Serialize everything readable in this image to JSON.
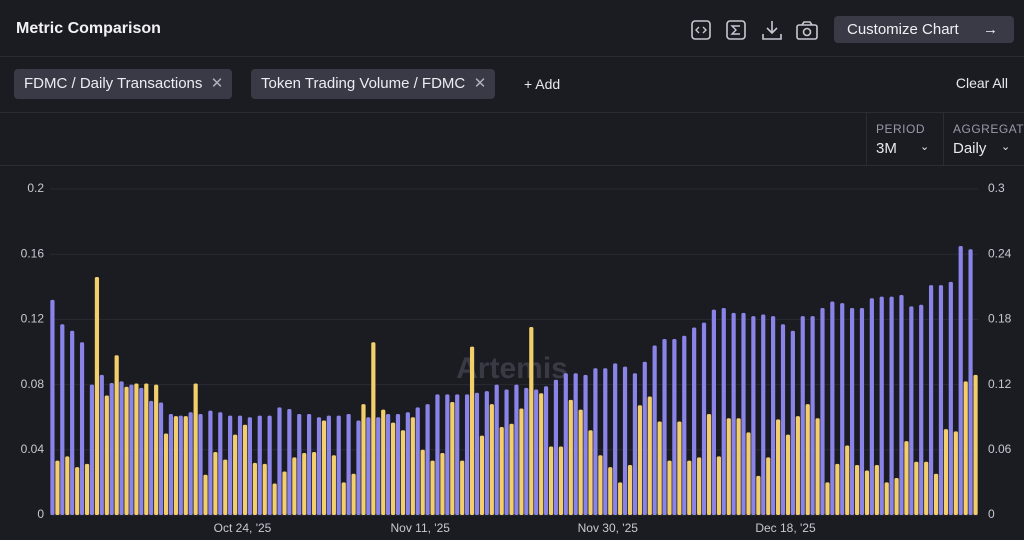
{
  "header": {
    "title": "Metric Comparison",
    "button": "Customize Chart"
  },
  "toolbar": {
    "add": "+ Add",
    "clear": "Clear All"
  },
  "controls": [
    {
      "label": "PERIOD",
      "value": "3M"
    },
    {
      "label": "AGGREGATE",
      "value": "Daily"
    }
  ],
  "chart_data": {
    "type": "bar",
    "watermark": "Artemis",
    "categories": [
      null,
      null,
      null,
      null,
      null,
      null,
      null,
      null,
      null,
      null,
      null,
      null,
      null,
      null,
      null,
      null,
      null,
      null,
      null,
      "Oct 24, '25",
      null,
      null,
      null,
      null,
      null,
      null,
      null,
      null,
      null,
      null,
      null,
      null,
      null,
      null,
      null,
      null,
      null,
      "Nov 11, '25",
      null,
      null,
      null,
      null,
      null,
      null,
      null,
      null,
      null,
      null,
      null,
      null,
      null,
      null,
      null,
      null,
      null,
      null,
      "Nov 30, '25",
      null,
      null,
      null,
      null,
      null,
      null,
      null,
      null,
      null,
      null,
      null,
      null,
      null,
      null,
      null,
      null,
      null,
      "Dec 18, '25",
      null,
      null,
      null,
      null,
      null,
      null,
      null,
      null,
      null,
      null,
      null,
      null,
      null,
      null,
      null,
      null,
      null,
      null,
      null
    ],
    "series": [
      {
        "name": "FDMC / Daily Transactions",
        "color": "#8b84e8",
        "axis": "y",
        "values": [
          0.132,
          0.117,
          0.113,
          0.106,
          0.08,
          0.086,
          0.081,
          0.082,
          0.08,
          0.078,
          0.07,
          0.069,
          0.062,
          0.061,
          0.063,
          0.062,
          0.064,
          0.063,
          0.061,
          0.061,
          0.06,
          0.061,
          0.061,
          0.066,
          0.065,
          0.062,
          0.062,
          0.06,
          0.061,
          0.061,
          0.062,
          0.058,
          0.06,
          0.06,
          0.062,
          0.062,
          0.063,
          0.066,
          0.068,
          0.074,
          0.074,
          0.074,
          0.074,
          0.075,
          0.076,
          0.08,
          0.077,
          0.08,
          0.078,
          0.077,
          0.079,
          0.083,
          0.087,
          0.087,
          0.086,
          0.09,
          0.09,
          0.093,
          0.091,
          0.087,
          0.094,
          0.104,
          0.108,
          0.108,
          0.11,
          0.115,
          0.118,
          0.126,
          0.127,
          0.124,
          0.124,
          0.122,
          0.123,
          0.122,
          0.117,
          0.113,
          0.122,
          0.122,
          0.127,
          0.131,
          0.13,
          0.127,
          0.127,
          0.133,
          0.134,
          0.134,
          0.135,
          0.128,
          0.129,
          0.141,
          0.141,
          0.143,
          0.165,
          0.163
        ]
      },
      {
        "name": "Token Trading Volume / FDMC",
        "color": "#f2cf6b",
        "axis": "y2",
        "values": [
          0.05,
          0.054,
          0.044,
          0.047,
          0.219,
          0.11,
          0.147,
          0.118,
          0.121,
          0.121,
          0.12,
          0.075,
          0.091,
          0.091,
          0.121,
          0.037,
          0.058,
          0.051,
          0.074,
          0.083,
          0.048,
          0.047,
          0.029,
          0.04,
          0.053,
          0.057,
          0.058,
          0.087,
          0.055,
          0.03,
          0.038,
          0.102,
          0.159,
          0.097,
          0.085,
          0.078,
          0.09,
          0.06,
          0.05,
          0.057,
          0.104,
          0.05,
          0.155,
          0.073,
          0.102,
          0.081,
          0.084,
          0.098,
          0.173,
          0.112,
          0.063,
          0.063,
          0.106,
          0.097,
          0.078,
          0.055,
          0.044,
          0.03,
          0.046,
          0.101,
          0.109,
          0.086,
          0.05,
          0.086,
          0.05,
          0.053,
          0.093,
          0.054,
          0.089,
          0.089,
          0.076,
          0.036,
          0.053,
          0.088,
          0.074,
          0.091,
          0.102,
          0.089,
          0.03,
          0.047,
          0.064,
          0.046,
          0.041,
          0.046,
          0.03,
          0.034,
          0.068,
          0.049,
          0.049,
          0.038,
          0.079,
          0.077,
          0.123,
          0.129
        ]
      }
    ],
    "ylim": [
      0,
      0.2
    ],
    "yticks": [
      0,
      0.04,
      0.08,
      0.12,
      0.16,
      0.2
    ],
    "y2lim": [
      0,
      0.3
    ],
    "y2ticks": [
      0,
      0.06,
      0.12,
      0.18,
      0.24,
      0.3
    ],
    "grid": true
  }
}
